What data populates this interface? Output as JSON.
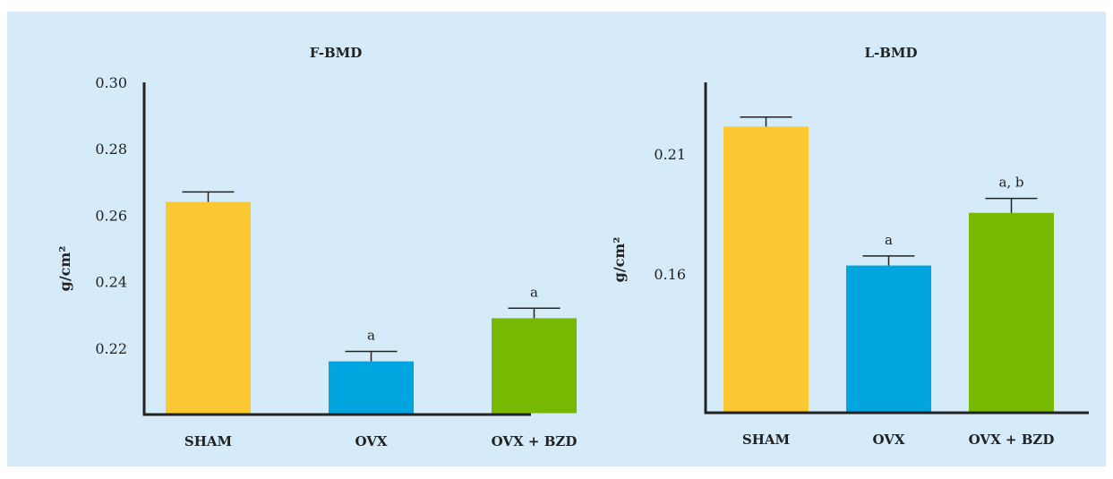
{
  "chart_data": [
    {
      "type": "bar",
      "title": "F-BMD",
      "ylabel": "g/cm²",
      "categories": [
        "SHAM",
        "OVX",
        "OVX + BZD"
      ],
      "values": [
        0.264,
        0.216,
        0.229
      ],
      "errors": [
        0.003,
        0.003,
        0.003
      ],
      "annotations": [
        "",
        "a",
        "a"
      ],
      "yticks": [
        "0.22",
        "0.24",
        "0.26",
        "0.28",
        "0.30"
      ],
      "ylim": [
        0.2,
        0.3
      ],
      "colors": [
        "#fbc733",
        "#00a5e0",
        "#76b900"
      ]
    },
    {
      "type": "bar",
      "title": "L-BMD",
      "ylabel": "g/cm²",
      "categories": [
        "SHAM",
        "OVX",
        "OVX + BZD"
      ],
      "values": [
        0.2215,
        0.1635,
        0.1855
      ],
      "errors": [
        0.004,
        0.004,
        0.006
      ],
      "annotations": [
        "",
        "a",
        "a, b"
      ],
      "yticks": [
        "0.16",
        "0.21"
      ],
      "ylim": [
        0.102,
        0.24
      ],
      "colors": [
        "#fbc733",
        "#00a5e0",
        "#76b900"
      ]
    }
  ]
}
